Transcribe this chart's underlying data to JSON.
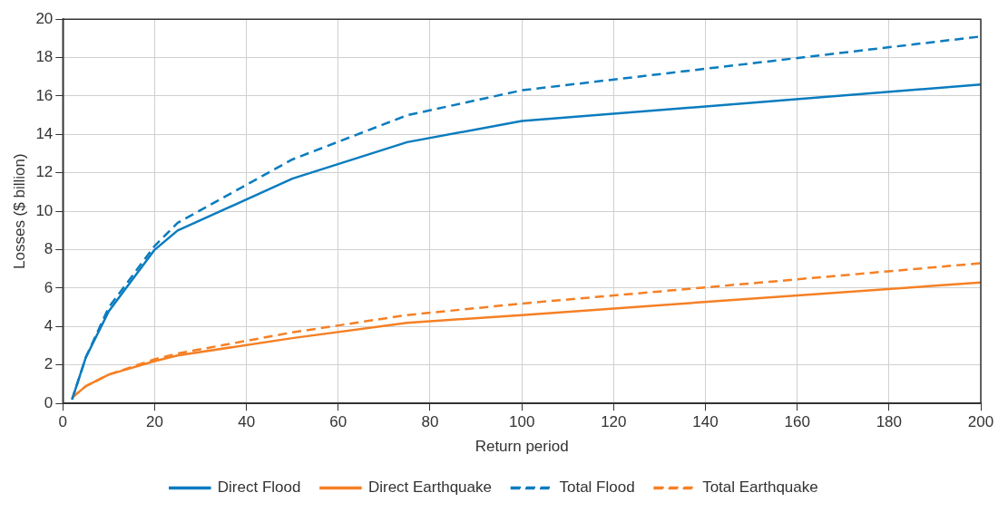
{
  "chart_data": {
    "type": "line",
    "xlabel": "Return period",
    "ylabel": "Losses ($ billion)",
    "xlim": [
      0,
      200
    ],
    "xticks": [
      0,
      20,
      40,
      60,
      80,
      100,
      120,
      140,
      160,
      180,
      200
    ],
    "ylim": [
      0,
      20
    ],
    "yticks": [
      0,
      2,
      4,
      6,
      8,
      10,
      12,
      14,
      16,
      18,
      20
    ],
    "grid": true,
    "legend": "bottom",
    "marker": "none",
    "x": [
      2,
      5,
      10,
      20,
      25,
      50,
      75,
      100,
      200
    ],
    "series": [
      {
        "name": "Direct Flood",
        "color": "#0a7cbf",
        "line_style": "solid",
        "values": [
          0.2,
          2.4,
          4.8,
          8.0,
          9.0,
          11.7,
          13.6,
          14.7,
          16.6
        ]
      },
      {
        "name": "Direct Earthquake",
        "color": "#f58025",
        "line_style": "solid",
        "values": [
          0.3,
          0.9,
          1.5,
          2.2,
          2.5,
          3.4,
          4.2,
          4.6,
          6.3
        ]
      },
      {
        "name": "Total Flood",
        "color": "#0a7cbf",
        "line_style": "dashed",
        "values": [
          0.2,
          2.4,
          5.0,
          8.2,
          9.4,
          12.7,
          15.0,
          16.3,
          19.1
        ]
      },
      {
        "name": "Total Earthquake",
        "color": "#f58025",
        "line_style": "dashed",
        "values": [
          0.3,
          0.9,
          1.5,
          2.3,
          2.6,
          3.7,
          4.6,
          5.2,
          7.3
        ]
      }
    ]
  }
}
